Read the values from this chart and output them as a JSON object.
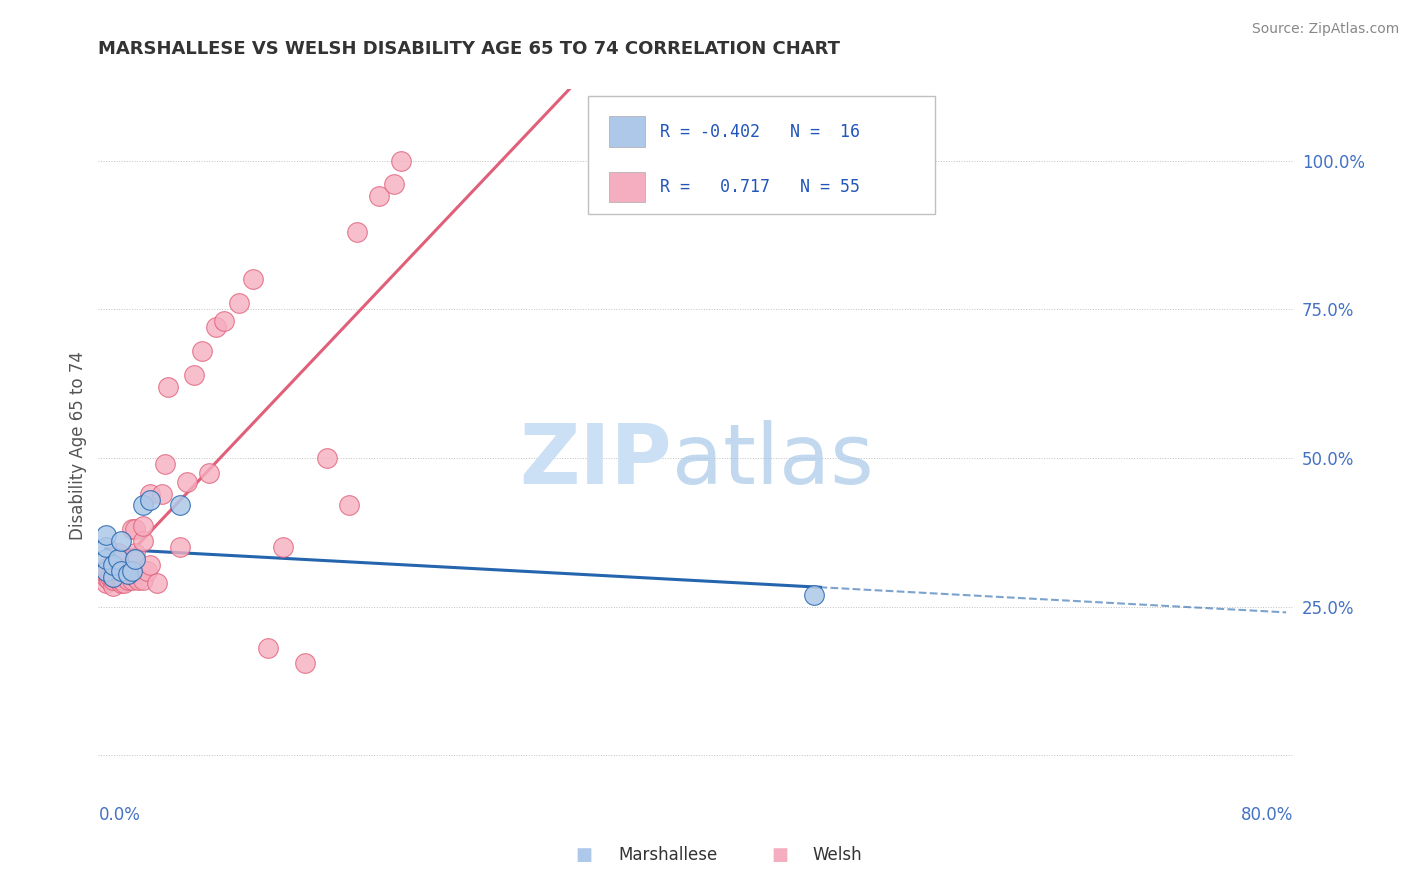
{
  "title": "MARSHALLESE VS WELSH DISABILITY AGE 65 TO 74 CORRELATION CHART",
  "source_text": "Source: ZipAtlas.com",
  "ylabel": "Disability Age 65 to 74",
  "xlim": [
    0.0,
    0.8
  ],
  "ylim": [
    -0.08,
    1.12
  ],
  "ytick_values": [
    0.0,
    0.25,
    0.5,
    0.75,
    1.0
  ],
  "right_ytick_labels": [
    "25.0%",
    "50.0%",
    "75.0%",
    "100.0%"
  ],
  "right_ytick_values": [
    0.25,
    0.5,
    0.75,
    1.0
  ],
  "legend_r_marshallese": "-0.402",
  "legend_n_marshallese": "16",
  "legend_r_welsh": "0.717",
  "legend_n_welsh": "55",
  "marshallese_color": "#adc8e8",
  "welsh_color": "#f5aec0",
  "marshallese_line_color": "#2565ae",
  "welsh_line_color": "#e0607a",
  "background_color": "#ffffff",
  "marshallese_x": [
    0.0,
    0.0,
    0.0,
    0.0,
    0.005,
    0.005,
    0.008,
    0.01,
    0.01,
    0.015,
    0.018,
    0.02,
    0.025,
    0.03,
    0.05,
    0.48
  ],
  "marshallese_y": [
    0.31,
    0.33,
    0.35,
    0.37,
    0.3,
    0.32,
    0.33,
    0.31,
    0.36,
    0.305,
    0.31,
    0.33,
    0.42,
    0.43,
    0.42,
    0.27
  ],
  "welsh_x": [
    0.0,
    0.0,
    0.0,
    0.0,
    0.0,
    0.002,
    0.003,
    0.005,
    0.005,
    0.005,
    0.006,
    0.008,
    0.008,
    0.01,
    0.01,
    0.01,
    0.01,
    0.012,
    0.015,
    0.015,
    0.015,
    0.018,
    0.018,
    0.02,
    0.02,
    0.02,
    0.022,
    0.025,
    0.025,
    0.025,
    0.028,
    0.03,
    0.03,
    0.035,
    0.038,
    0.04,
    0.042,
    0.05,
    0.055,
    0.06,
    0.065,
    0.07,
    0.075,
    0.08,
    0.09,
    0.1,
    0.11,
    0.12,
    0.135,
    0.15,
    0.165,
    0.17,
    0.185,
    0.195,
    0.2
  ],
  "welsh_y": [
    0.29,
    0.3,
    0.305,
    0.31,
    0.315,
    0.295,
    0.3,
    0.285,
    0.295,
    0.3,
    0.305,
    0.295,
    0.34,
    0.29,
    0.295,
    0.3,
    0.305,
    0.29,
    0.295,
    0.305,
    0.31,
    0.295,
    0.38,
    0.3,
    0.34,
    0.38,
    0.295,
    0.295,
    0.36,
    0.385,
    0.31,
    0.32,
    0.44,
    0.29,
    0.44,
    0.49,
    0.62,
    0.35,
    0.46,
    0.64,
    0.68,
    0.475,
    0.72,
    0.73,
    0.76,
    0.8,
    0.18,
    0.35,
    0.155,
    0.5,
    0.42,
    0.88,
    0.94,
    0.96,
    1.0
  ]
}
